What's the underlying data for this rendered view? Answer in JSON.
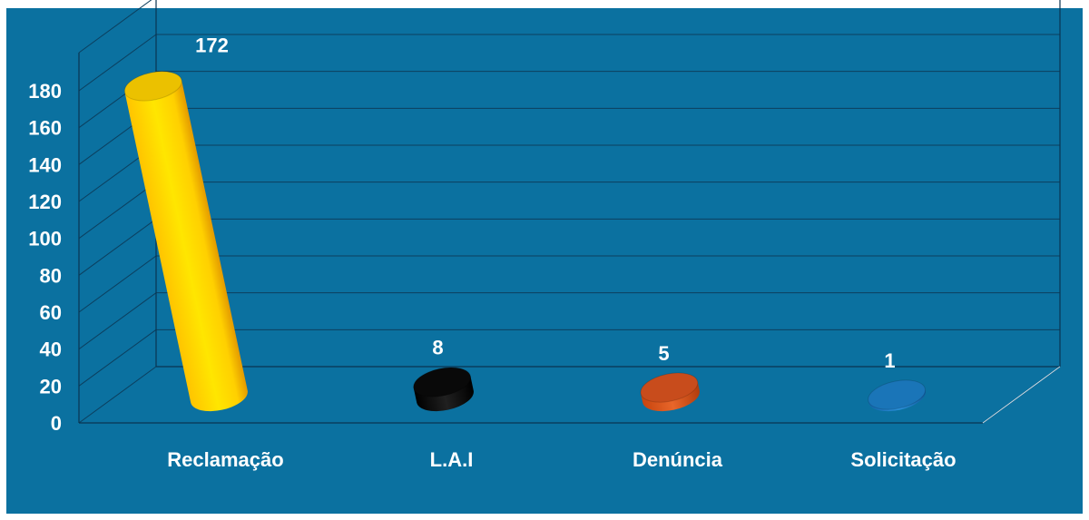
{
  "chart_data": {
    "type": "bar",
    "categories": [
      "Reclamação",
      "L.A.I",
      "Denúncia",
      "Solicitação"
    ],
    "values": [
      172,
      8,
      5,
      1
    ],
    "data_labels": [
      "172",
      "8",
      "5",
      "1"
    ],
    "colors": [
      "#ffd200",
      "#0a0a0a",
      "#d9531e",
      "#1c7fc8"
    ],
    "ylim": [
      0,
      180
    ],
    "yticks": [
      "0",
      "20",
      "40",
      "60",
      "80",
      "100",
      "120",
      "140",
      "160",
      "180"
    ],
    "title": "",
    "xlabel": "",
    "ylabel": "",
    "grid": true,
    "style": "3d-cylinder",
    "background": "#0b71a0"
  }
}
